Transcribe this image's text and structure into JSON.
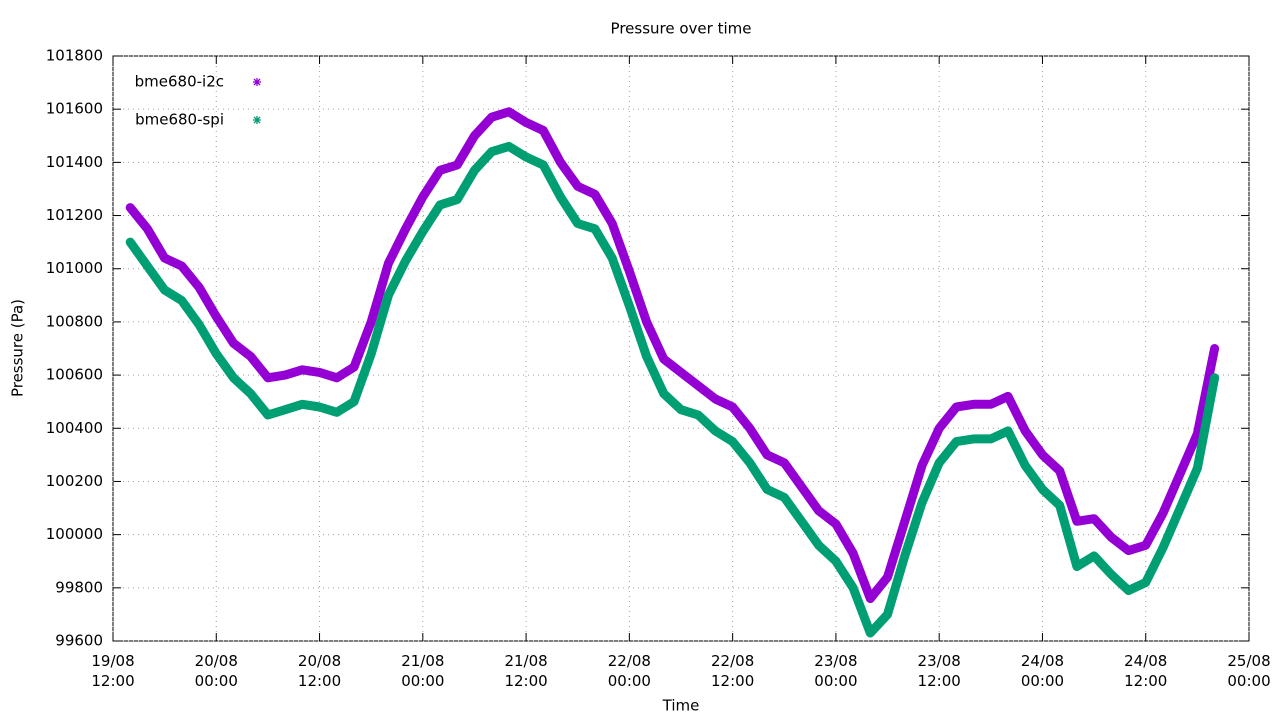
{
  "chart_data": {
    "type": "line",
    "title": "Pressure over time",
    "x_label": "Time",
    "y_label": "Pressure (Pa)",
    "x": [
      "19/08 14:00",
      "19/08 16:00",
      "19/08 18:00",
      "19/08 20:00",
      "19/08 22:00",
      "20/08 00:00",
      "20/08 02:00",
      "20/08 04:00",
      "20/08 06:00",
      "20/08 08:00",
      "20/08 10:00",
      "20/08 12:00",
      "20/08 14:00",
      "20/08 16:00",
      "20/08 18:00",
      "20/08 20:00",
      "20/08 22:00",
      "21/08 00:00",
      "21/08 02:00",
      "21/08 04:00",
      "21/08 06:00",
      "21/08 08:00",
      "21/08 10:00",
      "21/08 12:00",
      "21/08 14:00",
      "21/08 16:00",
      "21/08 18:00",
      "21/08 20:00",
      "21/08 22:00",
      "22/08 00:00",
      "22/08 02:00",
      "22/08 04:00",
      "22/08 06:00",
      "22/08 08:00",
      "22/08 10:00",
      "22/08 12:00",
      "22/08 14:00",
      "22/08 16:00",
      "22/08 18:00",
      "22/08 20:00",
      "22/08 22:00",
      "23/08 00:00",
      "23/08 02:00",
      "23/08 04:00",
      "23/08 06:00",
      "23/08 08:00",
      "23/08 10:00",
      "23/08 12:00",
      "23/08 14:00",
      "23/08 16:00",
      "23/08 18:00",
      "23/08 20:00",
      "23/08 22:00",
      "24/08 00:00",
      "24/08 02:00",
      "24/08 04:00",
      "24/08 06:00",
      "24/08 08:00",
      "24/08 10:00",
      "24/08 12:00",
      "24/08 14:00",
      "24/08 16:00",
      "24/08 18:00",
      "24/08 20:00"
    ],
    "series": [
      {
        "name": "bme680-i2c",
        "color": "#9400d3",
        "values": [
          101230,
          101150,
          101040,
          101010,
          100930,
          100820,
          100720,
          100670,
          100590,
          100600,
          100620,
          100610,
          100590,
          100630,
          100800,
          101020,
          101150,
          101270,
          101370,
          101390,
          101500,
          101570,
          101590,
          101550,
          101520,
          101400,
          101310,
          101280,
          101170,
          100990,
          100800,
          100660,
          100610,
          100560,
          100510,
          100480,
          100400,
          100300,
          100270,
          100180,
          100090,
          100040,
          99930,
          99760,
          99840,
          100050,
          100260,
          100400,
          100480,
          100490,
          100490,
          100520,
          100390,
          100300,
          100240,
          100050,
          100060,
          99990,
          99940,
          99960,
          100080,
          100230,
          100380,
          100700
        ]
      },
      {
        "name": "bme680-spi",
        "color": "#009e73",
        "values": [
          101100,
          101010,
          100920,
          100880,
          100790,
          100680,
          100590,
          100530,
          100450,
          100470,
          100490,
          100480,
          100460,
          100500,
          100680,
          100900,
          101030,
          101140,
          101240,
          101260,
          101370,
          101440,
          101460,
          101420,
          101390,
          101270,
          101170,
          101150,
          101040,
          100860,
          100670,
          100530,
          100470,
          100450,
          100390,
          100350,
          100270,
          100170,
          100140,
          100050,
          99960,
          99900,
          99800,
          99630,
          99700,
          99920,
          100120,
          100270,
          100350,
          100360,
          100360,
          100390,
          100260,
          100170,
          100110,
          99880,
          99920,
          99850,
          99790,
          99820,
          99950,
          100100,
          100250,
          100590
        ]
      }
    ],
    "xlim": [
      "19/08 12:00",
      "25/08 00:00"
    ],
    "xticks": [
      {
        "value": "19/08 12:00",
        "label": "19/08\n12:00"
      },
      {
        "value": "20/08 00:00",
        "label": "20/08\n00:00"
      },
      {
        "value": "20/08 12:00",
        "label": "20/08\n12:00"
      },
      {
        "value": "21/08 00:00",
        "label": "21/08\n00:00"
      },
      {
        "value": "21/08 12:00",
        "label": "21/08\n12:00"
      },
      {
        "value": "22/08 00:00",
        "label": "22/08\n00:00"
      },
      {
        "value": "22/08 12:00",
        "label": "22/08\n12:00"
      },
      {
        "value": "23/08 00:00",
        "label": "23/08\n00:00"
      },
      {
        "value": "23/08 12:00",
        "label": "23/08\n12:00"
      },
      {
        "value": "24/08 00:00",
        "label": "24/08\n00:00"
      },
      {
        "value": "24/08 12:00",
        "label": "24/08\n12:00"
      },
      {
        "value": "25/08 00:00",
        "label": "25/08\n00:00"
      }
    ],
    "ylim": [
      99600,
      101800
    ],
    "yticks": [
      99600,
      99800,
      100000,
      100200,
      100400,
      100600,
      100800,
      101000,
      101200,
      101400,
      101600,
      101800
    ],
    "grid": true,
    "legend": "top-left"
  }
}
